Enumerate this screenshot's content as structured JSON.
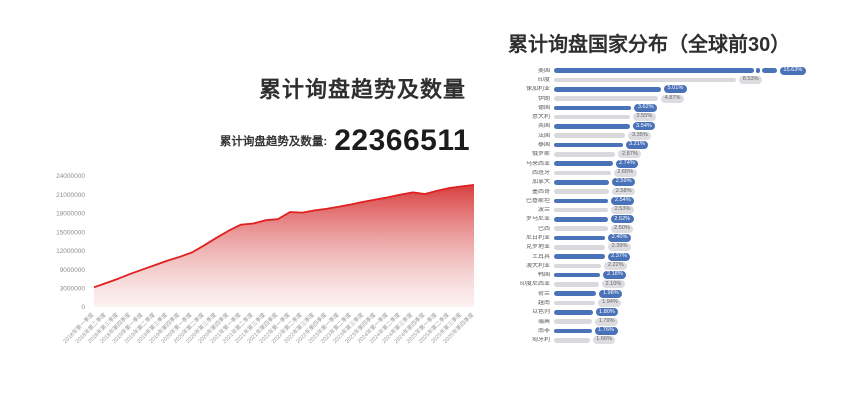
{
  "chart_data": [
    {
      "id": "trend",
      "type": "area",
      "title": "累计询盘趋势及数量",
      "headline_label": "累计询盘趋势及数量:",
      "headline_value": "22366511",
      "x": [
        "2018年第一季度",
        "2018年第二季度",
        "2018年第三季度",
        "2018年第四季度",
        "2019年第一季度",
        "2019年第二季度",
        "2019年第三季度",
        "2019年第四季度",
        "2020年第一季度",
        "2020年第二季度",
        "2020年第三季度",
        "2020年第四季度",
        "2021年第一季度",
        "2021年第二季度",
        "2021年第三季度",
        "2021年第四季度",
        "2022年第一季度",
        "2022年第二季度",
        "2022年第三季度",
        "2022年第四季度",
        "2023年第一季度",
        "2023年第二季度",
        "2023年第三季度",
        "2023年第四季度",
        "2024年第一季度",
        "2024年第二季度",
        "2024年第三季度",
        "2024年第四季度",
        "2025年第一季度",
        "2025年第二季度",
        "2025年第三季度",
        "2025年第四季度"
      ],
      "values": [
        3600000,
        4400000,
        5200000,
        6100000,
        6900000,
        7700000,
        8500000,
        9200000,
        10000000,
        11300000,
        12700000,
        14000000,
        15100000,
        15300000,
        15900000,
        16100000,
        17400000,
        17300000,
        17700000,
        18000000,
        18400000,
        18800000,
        19300000,
        19700000,
        20100000,
        20600000,
        21000000,
        20700000,
        21300000,
        21800000,
        22100000,
        22366511
      ],
      "y_axis_labels": [
        "24000000",
        "21000000",
        "18000000",
        "15000000",
        "12000000",
        "9000000",
        "3000000",
        "0"
      ],
      "ylim": [
        0,
        24000000
      ],
      "grid": false,
      "line_color": "#e01f1f",
      "fill_gradient": [
        "#d63434",
        "#f8e2e2"
      ]
    },
    {
      "id": "countries",
      "type": "bar",
      "orientation": "horizontal",
      "title": "累计询盘国家分布（全球前30）",
      "unit": "%",
      "max_scale_pct": 8.53,
      "bar_colors": {
        "odd_rows": "#4a72b8",
        "even_rows": "#d9d9dd"
      },
      "items": [
        {
          "name": "美国",
          "value": 15.63,
          "label": "15.63%",
          "broken": true
        },
        {
          "name": "印度",
          "value": 8.53,
          "label": "8.53%"
        },
        {
          "name": "保加利亚",
          "value": 5.01,
          "label": "5.01%"
        },
        {
          "name": "伊朗",
          "value": 4.87,
          "label": "4.87%"
        },
        {
          "name": "德国",
          "value": 3.62,
          "label": "3.62%"
        },
        {
          "name": "意大利",
          "value": 3.55,
          "label": "3.55%"
        },
        {
          "name": "英国",
          "value": 3.54,
          "label": "3.54%"
        },
        {
          "name": "法国",
          "value": 3.35,
          "label": "3.35%"
        },
        {
          "name": "泰国",
          "value": 3.21,
          "label": "3.21%"
        },
        {
          "name": "俄罗斯",
          "value": 2.87,
          "label": "2.87%"
        },
        {
          "name": "马来西亚",
          "value": 2.74,
          "label": "2.74%"
        },
        {
          "name": "西班牙",
          "value": 2.65,
          "label": "2.65%"
        },
        {
          "name": "加拿大",
          "value": 2.59,
          "label": "2.59%"
        },
        {
          "name": "墨西哥",
          "value": 2.58,
          "label": "2.58%"
        },
        {
          "name": "巴基斯坦",
          "value": 2.54,
          "label": "2.54%"
        },
        {
          "name": "波兰",
          "value": 2.53,
          "label": "2.53%"
        },
        {
          "name": "罗马尼亚",
          "value": 2.52,
          "label": "2.52%"
        },
        {
          "name": "巴西",
          "value": 2.5,
          "label": "2.50%"
        },
        {
          "name": "尼日利亚",
          "value": 2.4,
          "label": "2.40%"
        },
        {
          "name": "克罗地亚",
          "value": 2.39,
          "label": "2.39%"
        },
        {
          "name": "土耳其",
          "value": 2.37,
          "label": "2.37%"
        },
        {
          "name": "澳大利亚",
          "value": 2.22,
          "label": "2.22%"
        },
        {
          "name": "韩国",
          "value": 2.18,
          "label": "2.18%"
        },
        {
          "name": "印度尼西亚",
          "value": 2.1,
          "label": "2.10%"
        },
        {
          "name": "荷兰",
          "value": 1.98,
          "label": "1.98%"
        },
        {
          "name": "越南",
          "value": 1.94,
          "label": "1.94%"
        },
        {
          "name": "以色列",
          "value": 1.8,
          "label": "1.80%"
        },
        {
          "name": "瑞典",
          "value": 1.79,
          "label": "1.79%"
        },
        {
          "name": "南非",
          "value": 1.76,
          "label": "1.76%"
        },
        {
          "name": "匈牙利",
          "value": 1.66,
          "label": "1.66%"
        }
      ]
    }
  ]
}
